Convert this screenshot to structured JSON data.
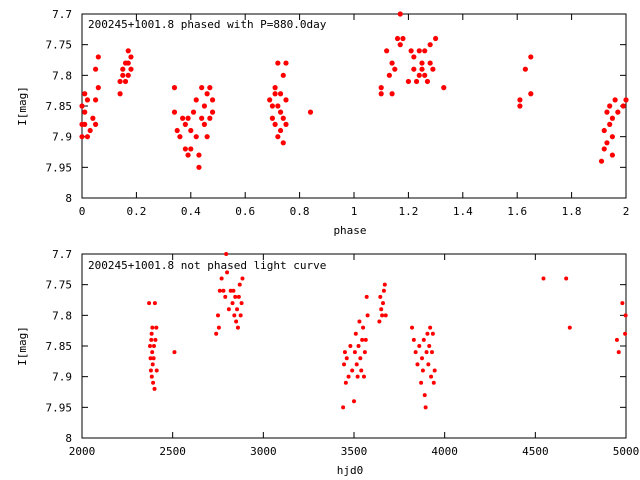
{
  "chart_data": [
    {
      "type": "scatter",
      "title": "200245+1001.8 phased with P=880.0day",
      "xlabel": "phase",
      "ylabel": "I[mag]",
      "xlim": [
        0,
        2
      ],
      "ylim": [
        7.7,
        8
      ],
      "y_inverted": true,
      "grid": false,
      "legend": "none",
      "xticks": [
        "0",
        "0.2",
        "0.4",
        "0.6",
        "0.8",
        "1",
        "1.2",
        "1.4",
        "1.6",
        "1.8",
        "2"
      ],
      "yticks": [
        "7.7",
        "7.75",
        "7.8",
        "7.85",
        "7.9",
        "7.95",
        "8"
      ],
      "marker_color": "#ff0000",
      "series": [
        {
          "points": [
            [
              0.0,
              7.85
            ],
            [
              0.0,
              7.88
            ],
            [
              0.0,
              7.9
            ],
            [
              0.01,
              7.83
            ],
            [
              0.01,
              7.86
            ],
            [
              0.01,
              7.88
            ],
            [
              0.02,
              7.84
            ],
            [
              0.02,
              7.9
            ],
            [
              0.03,
              7.89
            ],
            [
              0.04,
              7.87
            ],
            [
              0.05,
              7.84
            ],
            [
              0.05,
              7.88
            ],
            [
              0.05,
              7.79
            ],
            [
              0.06,
              7.77
            ],
            [
              0.06,
              7.82
            ],
            [
              0.14,
              7.81
            ],
            [
              0.14,
              7.83
            ],
            [
              0.15,
              7.79
            ],
            [
              0.15,
              7.8
            ],
            [
              0.16,
              7.78
            ],
            [
              0.16,
              7.81
            ],
            [
              0.17,
              7.76
            ],
            [
              0.17,
              7.78
            ],
            [
              0.17,
              7.8
            ],
            [
              0.18,
              7.77
            ],
            [
              0.18,
              7.79
            ],
            [
              0.34,
              7.82
            ],
            [
              0.34,
              7.86
            ],
            [
              0.35,
              7.89
            ],
            [
              0.36,
              7.9
            ],
            [
              0.37,
              7.87
            ],
            [
              0.38,
              7.88
            ],
            [
              0.38,
              7.92
            ],
            [
              0.39,
              7.87
            ],
            [
              0.39,
              7.93
            ],
            [
              0.4,
              7.92
            ],
            [
              0.4,
              7.89
            ],
            [
              0.41,
              7.86
            ],
            [
              0.42,
              7.84
            ],
            [
              0.42,
              7.9
            ],
            [
              0.43,
              7.95
            ],
            [
              0.43,
              7.93
            ],
            [
              0.44,
              7.87
            ],
            [
              0.44,
              7.82
            ],
            [
              0.45,
              7.85
            ],
            [
              0.45,
              7.88
            ],
            [
              0.46,
              7.83
            ],
            [
              0.46,
              7.9
            ],
            [
              0.47,
              7.87
            ],
            [
              0.47,
              7.82
            ],
            [
              0.48,
              7.86
            ],
            [
              0.48,
              7.84
            ],
            [
              0.69,
              7.84
            ],
            [
              0.7,
              7.87
            ],
            [
              0.7,
              7.85
            ],
            [
              0.71,
              7.82
            ],
            [
              0.71,
              7.88
            ],
            [
              0.71,
              7.83
            ],
            [
              0.72,
              7.78
            ],
            [
              0.72,
              7.85
            ],
            [
              0.72,
              7.9
            ],
            [
              0.73,
              7.86
            ],
            [
              0.73,
              7.89
            ],
            [
              0.73,
              7.83
            ],
            [
              0.74,
              7.91
            ],
            [
              0.74,
              7.87
            ],
            [
              0.74,
              7.8
            ],
            [
              0.75,
              7.78
            ],
            [
              0.75,
              7.84
            ],
            [
              0.75,
              7.88
            ],
            [
              0.84,
              7.86
            ],
            [
              1.1,
              7.82
            ],
            [
              1.1,
              7.83
            ],
            [
              1.12,
              7.76
            ],
            [
              1.13,
              7.8
            ],
            [
              1.14,
              7.78
            ],
            [
              1.14,
              7.83
            ],
            [
              1.15,
              7.79
            ],
            [
              1.16,
              7.74
            ],
            [
              1.17,
              7.75
            ],
            [
              1.17,
              7.7
            ],
            [
              1.18,
              7.74
            ],
            [
              1.2,
              7.81
            ],
            [
              1.21,
              7.76
            ],
            [
              1.22,
              7.79
            ],
            [
              1.22,
              7.77
            ],
            [
              1.23,
              7.81
            ],
            [
              1.24,
              7.8
            ],
            [
              1.24,
              7.76
            ],
            [
              1.25,
              7.79
            ],
            [
              1.25,
              7.78
            ],
            [
              1.26,
              7.8
            ],
            [
              1.26,
              7.76
            ],
            [
              1.27,
              7.81
            ],
            [
              1.28,
              7.78
            ],
            [
              1.28,
              7.75
            ],
            [
              1.29,
              7.79
            ],
            [
              1.3,
              7.74
            ],
            [
              1.33,
              7.82
            ],
            [
              1.61,
              7.84
            ],
            [
              1.61,
              7.85
            ],
            [
              1.63,
              7.79
            ],
            [
              1.65,
              7.77
            ],
            [
              1.65,
              7.83
            ],
            [
              1.91,
              7.94
            ],
            [
              1.92,
              7.92
            ],
            [
              1.92,
              7.89
            ],
            [
              1.93,
              7.86
            ],
            [
              1.93,
              7.91
            ],
            [
              1.94,
              7.88
            ],
            [
              1.94,
              7.85
            ],
            [
              1.95,
              7.9
            ],
            [
              1.95,
              7.87
            ],
            [
              1.95,
              7.93
            ],
            [
              1.96,
              7.84
            ],
            [
              1.97,
              7.86
            ],
            [
              1.99,
              7.85
            ],
            [
              2.0,
              7.84
            ]
          ]
        }
      ]
    },
    {
      "type": "scatter",
      "title": "200245+1001.8 not phased light curve",
      "xlabel": "hjd0",
      "ylabel": "I[mag]",
      "xlim": [
        2000,
        5000
      ],
      "ylim": [
        7.7,
        8
      ],
      "y_inverted": true,
      "grid": false,
      "legend": "none",
      "xticks": [
        "2000",
        "2500",
        "3000",
        "3500",
        "4000",
        "4500",
        "5000"
      ],
      "yticks": [
        "7.7",
        "7.75",
        "7.8",
        "7.85",
        "7.9",
        "7.95",
        "8"
      ],
      "marker_color": "#ff0000",
      "series": [
        {
          "points": [
            [
              2370,
              7.78
            ],
            [
              2375,
              7.85
            ],
            [
              2378,
              7.87
            ],
            [
              2380,
              7.89
            ],
            [
              2382,
              7.84
            ],
            [
              2384,
              7.83
            ],
            [
              2385,
              7.9
            ],
            [
              2387,
              7.86
            ],
            [
              2388,
              7.82
            ],
            [
              2390,
              7.88
            ],
            [
              2392,
              7.91
            ],
            [
              2395,
              7.87
            ],
            [
              2397,
              7.85
            ],
            [
              2400,
              7.92
            ],
            [
              2402,
              7.78
            ],
            [
              2405,
              7.84
            ],
            [
              2410,
              7.82
            ],
            [
              2412,
              7.89
            ],
            [
              2510,
              7.86
            ],
            [
              2740,
              7.83
            ],
            [
              2750,
              7.8
            ],
            [
              2755,
              7.82
            ],
            [
              2760,
              7.76
            ],
            [
              2770,
              7.74
            ],
            [
              2780,
              7.76
            ],
            [
              2790,
              7.77
            ],
            [
              2795,
              7.7
            ],
            [
              2800,
              7.73
            ],
            [
              2810,
              7.79
            ],
            [
              2820,
              7.76
            ],
            [
              2830,
              7.78
            ],
            [
              2835,
              7.76
            ],
            [
              2840,
              7.8
            ],
            [
              2845,
              7.77
            ],
            [
              2850,
              7.81
            ],
            [
              2855,
              7.79
            ],
            [
              2860,
              7.82
            ],
            [
              2865,
              7.77
            ],
            [
              2870,
              7.75
            ],
            [
              2875,
              7.8
            ],
            [
              2880,
              7.78
            ],
            [
              2885,
              7.74
            ],
            [
              3440,
              7.95
            ],
            [
              3445,
              7.88
            ],
            [
              3450,
              7.86
            ],
            [
              3455,
              7.91
            ],
            [
              3460,
              7.87
            ],
            [
              3470,
              7.9
            ],
            [
              3480,
              7.85
            ],
            [
              3490,
              7.89
            ],
            [
              3500,
              7.94
            ],
            [
              3505,
              7.86
            ],
            [
              3510,
              7.83
            ],
            [
              3515,
              7.88
            ],
            [
              3520,
              7.9
            ],
            [
              3525,
              7.85
            ],
            [
              3530,
              7.81
            ],
            [
              3535,
              7.87
            ],
            [
              3540,
              7.89
            ],
            [
              3545,
              7.84
            ],
            [
              3550,
              7.82
            ],
            [
              3555,
              7.9
            ],
            [
              3560,
              7.86
            ],
            [
              3565,
              7.84
            ],
            [
              3570,
              7.77
            ],
            [
              3575,
              7.8
            ],
            [
              3640,
              7.81
            ],
            [
              3645,
              7.77
            ],
            [
              3650,
              7.79
            ],
            [
              3655,
              7.8
            ],
            [
              3660,
              7.78
            ],
            [
              3665,
              7.76
            ],
            [
              3670,
              7.75
            ],
            [
              3675,
              7.8
            ],
            [
              3820,
              7.82
            ],
            [
              3830,
              7.84
            ],
            [
              3840,
              7.86
            ],
            [
              3850,
              7.88
            ],
            [
              3860,
              7.85
            ],
            [
              3870,
              7.91
            ],
            [
              3875,
              7.87
            ],
            [
              3880,
              7.89
            ],
            [
              3885,
              7.84
            ],
            [
              3890,
              7.93
            ],
            [
              3895,
              7.95
            ],
            [
              3900,
              7.86
            ],
            [
              3905,
              7.83
            ],
            [
              3910,
              7.88
            ],
            [
              3915,
              7.85
            ],
            [
              3920,
              7.82
            ],
            [
              3925,
              7.9
            ],
            [
              3930,
              7.86
            ],
            [
              3935,
              7.83
            ],
            [
              3940,
              7.91
            ],
            [
              3945,
              7.89
            ],
            [
              4545,
              7.74
            ],
            [
              4670,
              7.74
            ],
            [
              4690,
              7.82
            ],
            [
              4950,
              7.84
            ],
            [
              4960,
              7.86
            ],
            [
              4980,
              7.78
            ],
            [
              4995,
              7.83
            ],
            [
              4998,
              7.8
            ]
          ]
        }
      ]
    }
  ]
}
